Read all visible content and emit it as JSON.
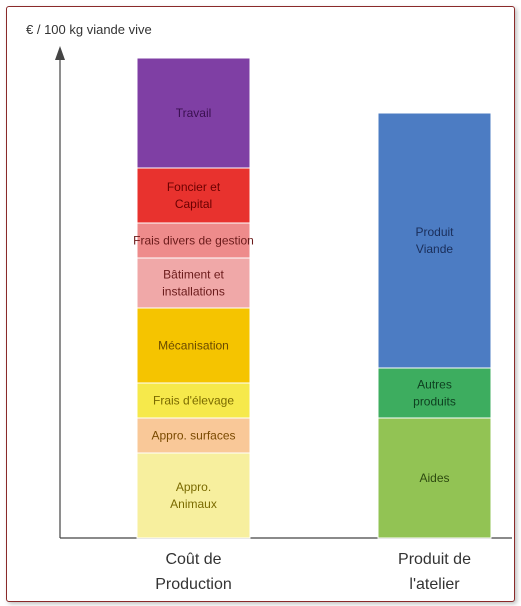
{
  "chart_data": {
    "type": "bar",
    "stacked": true,
    "ylabel": "€ / 100 kg viande vive",
    "categories": [
      [
        "Coût de",
        "Production"
      ],
      [
        "Produit de",
        "l'atelier"
      ]
    ],
    "stacks": [
      {
        "segments": [
          {
            "label": [
              "Appro.",
              "Animaux"
            ],
            "value": 85,
            "color": "#f7ef9e",
            "text_color": "#7a6a00"
          },
          {
            "label": [
              "Appro. surfaces"
            ],
            "value": 35,
            "color": "#f9c898",
            "text_color": "#7a4a00"
          },
          {
            "label": [
              "Frais d'élevage"
            ],
            "value": 35,
            "color": "#f6e94b",
            "text_color": "#7a6a00"
          },
          {
            "label": [
              "Mécanisation"
            ],
            "value": 75,
            "color": "#f5c400",
            "text_color": "#6a4a00"
          },
          {
            "label": [
              "Bâtiment et",
              "installations"
            ],
            "value": 50,
            "color": "#f0a8a8",
            "text_color": "#6a1a1a"
          },
          {
            "label": [
              "Frais divers de gestion"
            ],
            "value": 35,
            "color": "#ee8b8b",
            "text_color": "#6a1a1a"
          },
          {
            "label": [
              "Foncier et",
              "Capital"
            ],
            "value": 55,
            "color": "#e8322e",
            "text_color": "#6a0000"
          },
          {
            "label": [
              "Travail"
            ],
            "value": 110,
            "color": "#7f3fa4",
            "text_color": "#3a1050"
          }
        ]
      },
      {
        "segments": [
          {
            "label": [
              "Aides"
            ],
            "value": 120,
            "color": "#92c354",
            "text_color": "#2e4a10"
          },
          {
            "label": [
              "Autres",
              "produits"
            ],
            "value": 50,
            "color": "#3dad5f",
            "text_color": "#0e4020"
          },
          {
            "label": [
              "Produit",
              "Viande"
            ],
            "value": 255,
            "color": "#4c7cc3",
            "text_color": "#1a2e5a"
          }
        ]
      }
    ]
  }
}
